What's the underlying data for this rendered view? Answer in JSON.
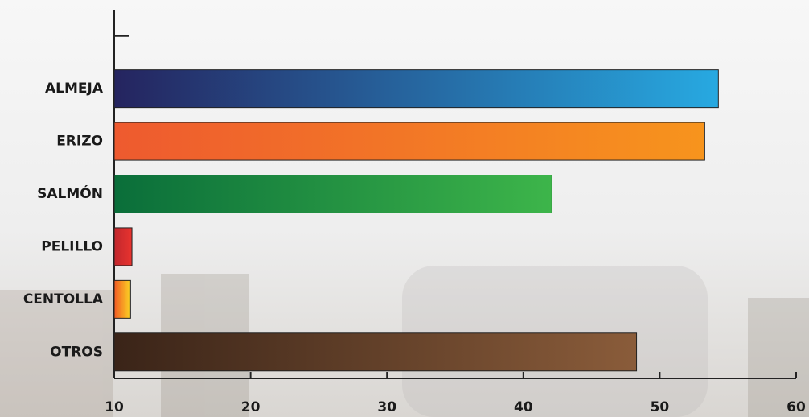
{
  "chart_data": {
    "type": "bar",
    "orientation": "horizontal",
    "categories": [
      null,
      "ALMEJA",
      "ERIZO",
      "SALMÓN",
      "PELILLO",
      "CENTOLLA",
      "OTROS"
    ],
    "values": [
      null,
      54.3,
      53.3,
      42.1,
      11.3,
      11.2,
      48.3
    ],
    "colors": [
      null,
      [
        "#25245f",
        "#27a9e1"
      ],
      [
        "#ee5a2f",
        "#f7941d"
      ],
      [
        "#0a6e3a",
        "#3db54a"
      ],
      [
        "#c1272d",
        "#e8332e"
      ],
      [
        "#f15a24",
        "#fbd424"
      ],
      [
        "#3a2418",
        "#8a5c3a"
      ]
    ],
    "xlim": [
      10,
      60
    ],
    "xticks": [
      10,
      20,
      30,
      40,
      50,
      60
    ]
  }
}
